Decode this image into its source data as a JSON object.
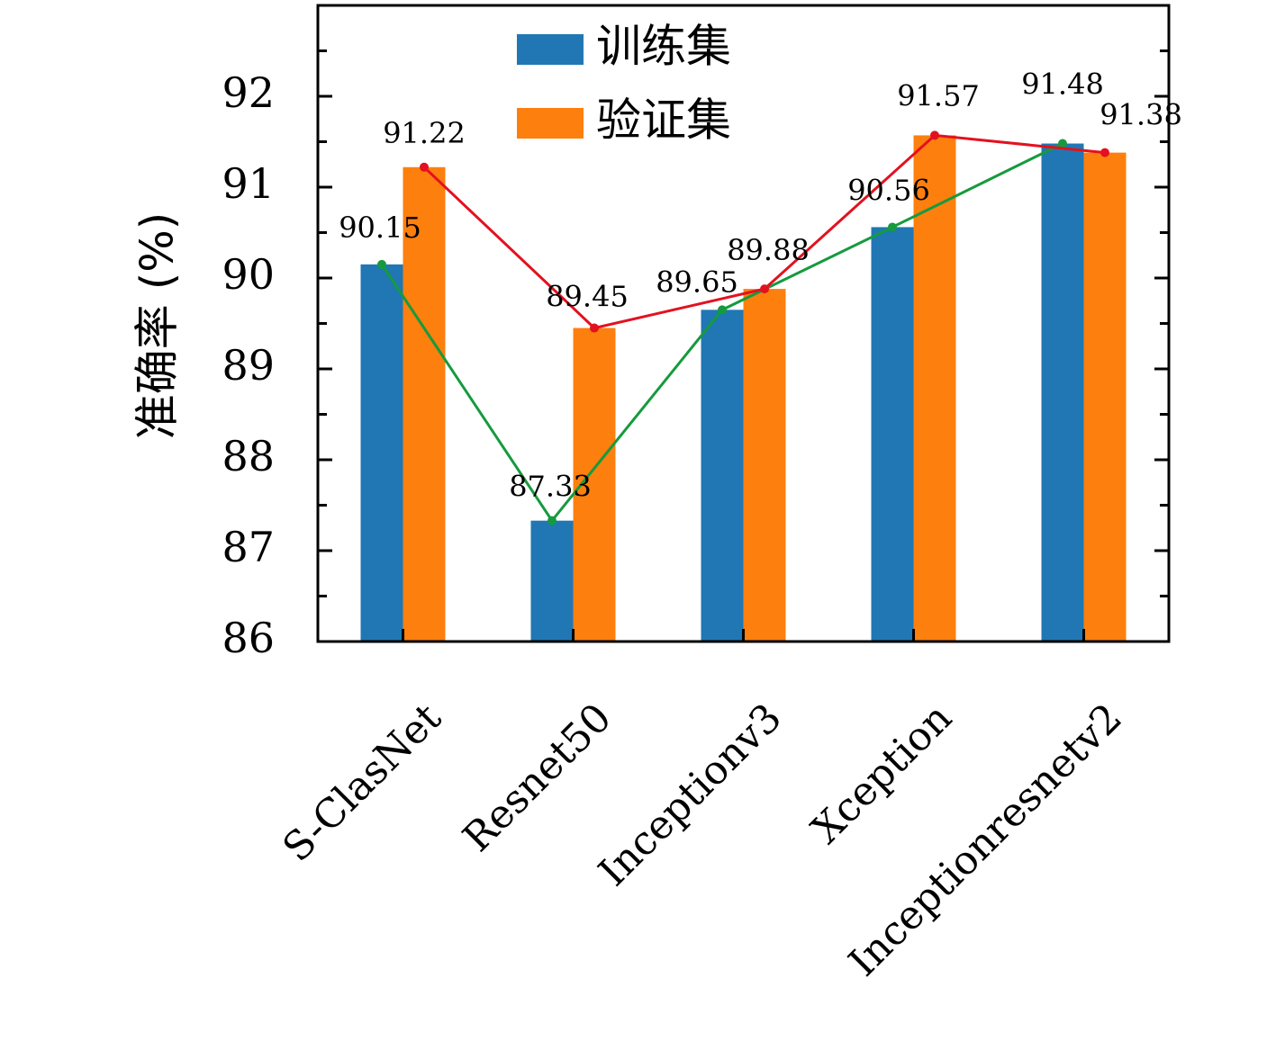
{
  "chart_data": {
    "type": "bar",
    "ylabel": "准确率 (%)",
    "xlabel": "",
    "ylim": [
      86,
      93
    ],
    "yticks": [
      86,
      87,
      88,
      89,
      90,
      91,
      92
    ],
    "legend_position": "top-center",
    "grid": false,
    "categories": [
      "S-ClasNet",
      "Resnet50",
      "Inceptionv3",
      "Xception",
      "Inceptionresnetv2"
    ],
    "series": [
      {
        "name": "训练集",
        "color": "#2077b4",
        "line_color": "#169a3e",
        "values": [
          90.15,
          87.33,
          89.65,
          90.56,
          91.48
        ],
        "labels": [
          "90.15",
          "87.33",
          "89.65",
          "90.56",
          "91.48"
        ]
      },
      {
        "name": "验证集",
        "color": "#fd7f0e",
        "line_color": "#e3111f",
        "values": [
          91.22,
          89.45,
          89.88,
          91.57,
          91.38
        ],
        "labels": [
          "91.22",
          "89.45",
          "89.88",
          "91.57",
          "91.38"
        ]
      }
    ]
  }
}
